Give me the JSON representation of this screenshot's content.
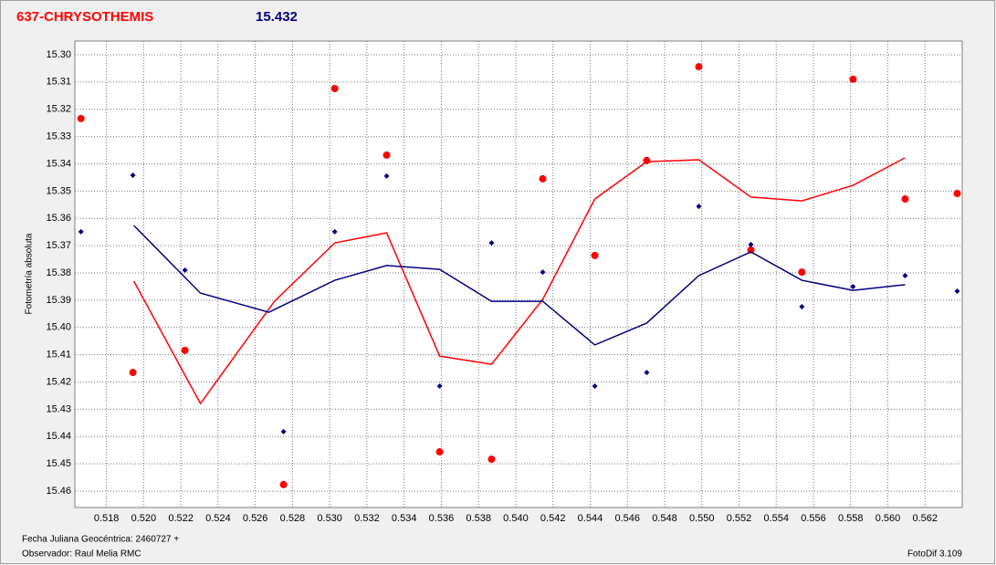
{
  "chart_data": {
    "type": "line",
    "title": "637-CHRYSOTHEMIS",
    "subtitle": "15.432",
    "y_label": "Fotometría absoluta",
    "x_label": "Fecha Juliana Geocéntrica: 2460727 +",
    "observer": "Observador: Raul Melia RMC",
    "software": "FotoDif 3.109",
    "title_color": "#ff0000",
    "subtitle_color": "#000080",
    "xlim": [
      0.5163,
      0.564
    ],
    "ylim": [
      15.466,
      15.295
    ],
    "y_reversed": true,
    "grid": true,
    "xticks": [
      0.518,
      {
        "value": 0.52,
        "label": "0.520"
      },
      0.522,
      0.524,
      0.526,
      0.528,
      {
        "value": 0.53,
        "label": "0.530"
      },
      0.532,
      0.534,
      0.536,
      0.538,
      {
        "value": 0.54,
        "label": "0.540"
      },
      0.542,
      0.544,
      0.546,
      0.548,
      {
        "value": 0.55,
        "label": "0.550"
      },
      0.552,
      0.554,
      0.556,
      0.558,
      {
        "value": 0.56,
        "label": "0.560"
      },
      0.562
    ],
    "yticks": [
      {
        "value": 15.3,
        "label": "15.30"
      },
      15.31,
      15.32,
      15.33,
      15.34,
      15.35,
      15.36,
      15.37,
      15.38,
      15.39,
      {
        "value": 15.4,
        "label": "15.40"
      },
      15.41,
      15.42,
      15.43,
      15.44,
      15.45,
      15.46
    ],
    "series": [
      {
        "kind": "markers",
        "color": "#ff0000",
        "x": [
          0.51663,
          0.51942,
          0.52222,
          0.52752,
          0.53027,
          0.53306,
          0.53591,
          0.5387,
          0.54145,
          0.54425,
          0.54704,
          0.54984,
          0.55264,
          0.55538,
          0.55813,
          0.56093,
          0.56373
        ],
        "values": [
          15.3234,
          15.4165,
          15.4084,
          15.4576,
          15.3124,
          15.3368,
          15.4456,
          15.4483,
          15.3455,
          15.3736,
          15.3388,
          15.3044,
          15.3716,
          15.3797,
          15.309,
          15.3529,
          15.3509
        ]
      },
      {
        "kind": "markers",
        "color": "#000080",
        "x": [
          0.51663,
          0.51942,
          0.52222,
          0.52752,
          0.53027,
          0.53306,
          0.53591,
          0.5387,
          0.54145,
          0.54425,
          0.54704,
          0.54984,
          0.55264,
          0.55538,
          0.55813,
          0.56093,
          0.56373
        ],
        "values": [
          15.3649,
          15.3442,
          15.379,
          15.4382,
          15.3649,
          15.3445,
          15.4215,
          15.369,
          15.3797,
          15.4215,
          15.4165,
          15.3556,
          15.3696,
          15.3924,
          15.385,
          15.381,
          15.3867
        ]
      },
      {
        "kind": "line",
        "color": "#ff0000",
        "x": [
          0.51947,
          0.52305,
          0.52703,
          0.53027,
          0.53306,
          0.53591,
          0.5387,
          0.54145,
          0.54425,
          0.54704,
          0.54984,
          0.55264,
          0.55538,
          0.55813,
          0.56093
        ],
        "values": [
          15.383,
          15.4279,
          15.3904,
          15.369,
          15.3653,
          15.4105,
          15.4135,
          15.3897,
          15.3529,
          15.3392,
          15.3385,
          15.3522,
          15.3536,
          15.3479,
          15.3378
        ]
      },
      {
        "kind": "line",
        "color": "#000080",
        "x": [
          0.51947,
          0.52305,
          0.52673,
          0.53027,
          0.53306,
          0.53591,
          0.5387,
          0.54145,
          0.54425,
          0.54704,
          0.54984,
          0.55264,
          0.55538,
          0.55813,
          0.56093
        ],
        "values": [
          15.3626,
          15.3874,
          15.3944,
          15.3827,
          15.3773,
          15.3787,
          15.3904,
          15.3904,
          15.4064,
          15.3984,
          15.381,
          15.3723,
          15.3827,
          15.3864,
          15.3843
        ]
      }
    ]
  }
}
